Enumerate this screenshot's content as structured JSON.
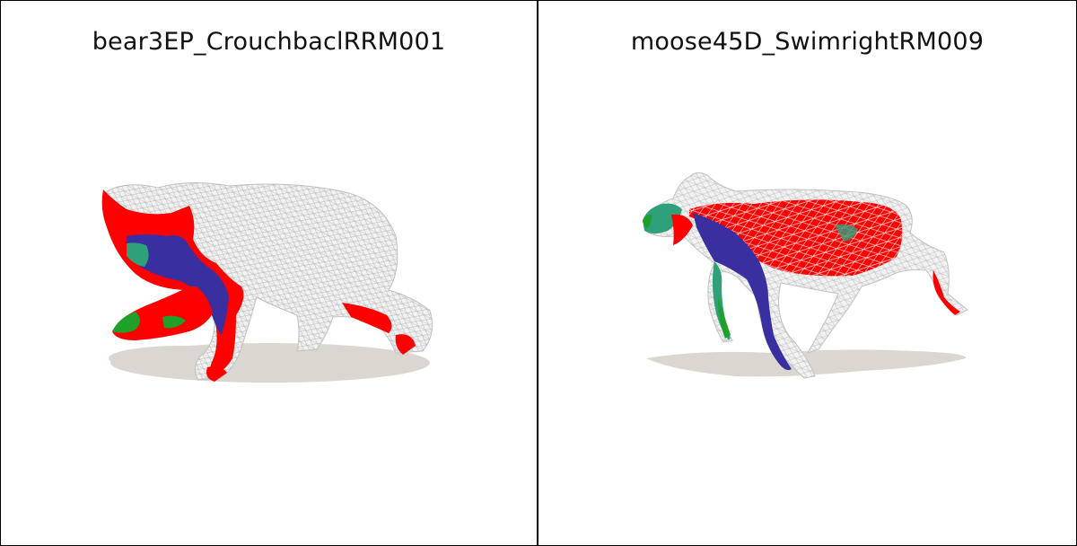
{
  "panels": [
    {
      "title": "bear3EP_CrouchbaclRRM001",
      "icon": "bear-mesh-render"
    },
    {
      "title": "moose45D_SwimrightRM009",
      "icon": "moose-mesh-render"
    }
  ],
  "colors": {
    "mesh": "#f2f2f2",
    "wire": "#b5b5b5",
    "red": "#ff0000",
    "blue": "#3a2fa0",
    "teal": "#2fa07a",
    "green": "#1ea02a",
    "shadow": "#d9d7d0"
  }
}
